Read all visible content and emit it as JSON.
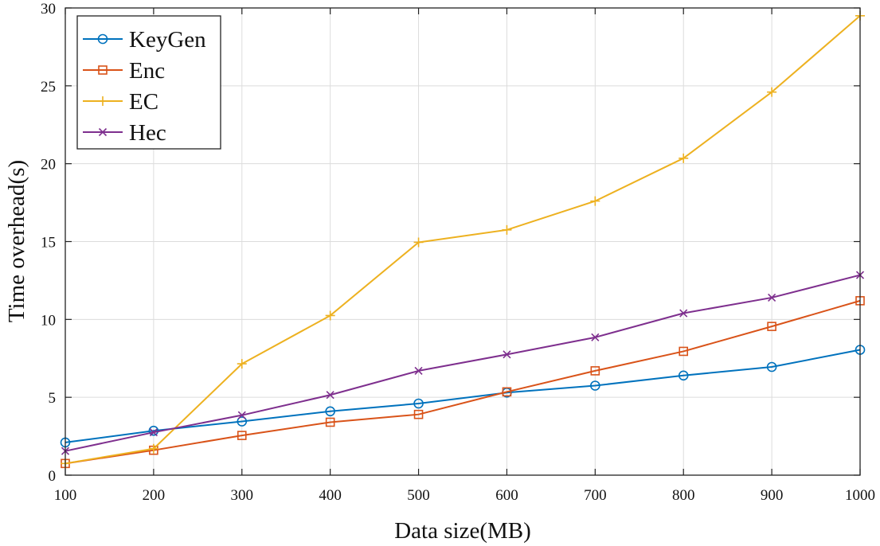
{
  "chart_data": {
    "type": "line",
    "title": "",
    "xlabel": "Data size(MB)",
    "ylabel": "Time overhead(s)",
    "x": [
      100,
      200,
      300,
      400,
      500,
      600,
      700,
      800,
      900,
      1000
    ],
    "xlim": [
      100,
      1000
    ],
    "ylim": [
      0,
      30
    ],
    "xticks": [
      "100",
      "200",
      "300",
      "400",
      "500",
      "600",
      "700",
      "800",
      "900",
      "1000"
    ],
    "yticks": [
      "0",
      "5",
      "10",
      "15",
      "20",
      "25",
      "30"
    ],
    "grid": true,
    "legend_position": "top-left",
    "series": [
      {
        "name": "KeyGen",
        "color": "#0072BD",
        "marker": "circle",
        "values": [
          2.1,
          2.85,
          3.45,
          4.1,
          4.6,
          5.3,
          5.75,
          6.4,
          6.95,
          8.05
        ]
      },
      {
        "name": "Enc",
        "color": "#D95319",
        "marker": "square",
        "values": [
          0.75,
          1.6,
          2.55,
          3.4,
          3.9,
          5.35,
          6.7,
          7.95,
          9.55,
          11.2
        ]
      },
      {
        "name": "EC",
        "color": "#EDB120",
        "marker": "plus",
        "values": [
          0.75,
          1.7,
          7.15,
          10.25,
          14.95,
          15.75,
          17.6,
          20.35,
          24.6,
          29.5
        ]
      },
      {
        "name": "Hec",
        "color": "#7E2F8E",
        "marker": "x",
        "values": [
          1.55,
          2.75,
          3.85,
          5.15,
          6.7,
          7.75,
          8.85,
          10.4,
          11.4,
          12.85
        ]
      }
    ]
  }
}
